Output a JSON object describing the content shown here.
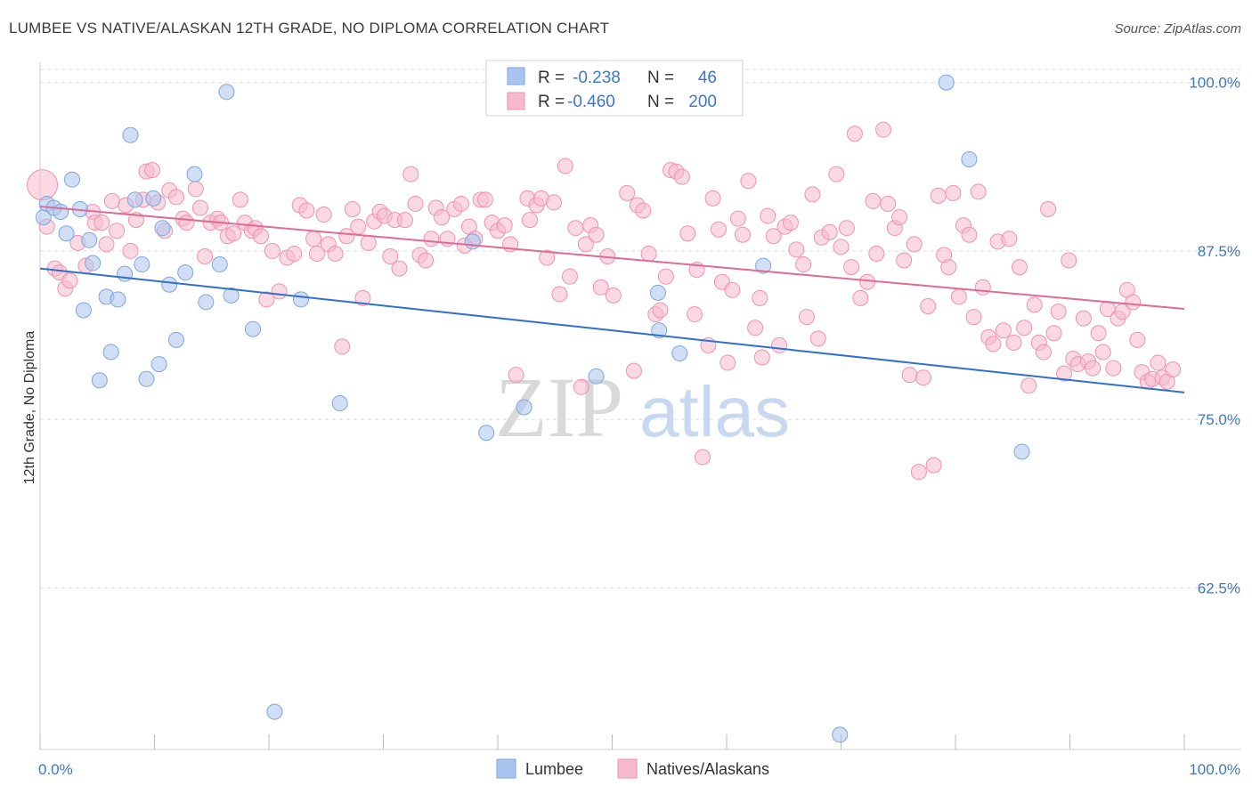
{
  "header": {
    "title": "LUMBEE VS NATIVE/ALASKAN 12TH GRADE, NO DIPLOMA CORRELATION CHART",
    "source": "Source: ZipAtlas.com"
  },
  "watermark": {
    "zip": "ZIP",
    "atlas": "atlas"
  },
  "legend": {
    "r_label": "R =",
    "n_label": "N =",
    "rows": [
      {
        "r": "-0.238",
        "n": "46"
      },
      {
        "r": "-0.460",
        "n": "200"
      }
    ]
  },
  "colors": {
    "lumbee_fill": "#a9c4ef",
    "lumbee_stroke": "#7ea6e0",
    "lumbee_line": "#2f6fd0",
    "native_fill": "#f7b9cc",
    "native_stroke": "#ee93ae",
    "native_line": "#e06a94",
    "tick_text": "#3d77c9",
    "grid": "#dddddd"
  },
  "chart_data": {
    "type": "scatter",
    "title": "LUMBEE VS NATIVE/ALASKAN 12TH GRADE, NO DIPLOMA CORRELATION CHART",
    "xlabel": "",
    "ylabel": "12th Grade, No Diploma",
    "xlim": [
      0,
      100
    ],
    "ylim": [
      50.5,
      101.5
    ],
    "x_tick_labels": [
      "0.0%",
      "100.0%"
    ],
    "y_ticks": [
      62.5,
      75.0,
      87.5,
      100.0
    ],
    "y_tick_labels": [
      "62.5%",
      "75.0%",
      "87.5%",
      "100.0%"
    ],
    "grid": true,
    "legend_position": "top-center",
    "series": [
      {
        "name": "Lumbee",
        "trend": {
          "x": [
            0,
            100
          ],
          "y": [
            86.2,
            77.0
          ]
        },
        "points": [
          [
            0.3,
            90.0
          ],
          [
            0.6,
            91.0
          ],
          [
            1.2,
            90.7
          ],
          [
            1.8,
            90.4
          ],
          [
            2.3,
            88.8
          ],
          [
            2.8,
            92.8
          ],
          [
            3.5,
            90.6
          ],
          [
            3.8,
            83.1
          ],
          [
            4.3,
            88.3
          ],
          [
            4.6,
            86.6
          ],
          [
            5.2,
            77.9
          ],
          [
            5.8,
            84.1
          ],
          [
            6.2,
            80.0
          ],
          [
            6.8,
            83.9
          ],
          [
            7.4,
            85.8
          ],
          [
            7.9,
            96.1
          ],
          [
            8.3,
            91.3
          ],
          [
            8.9,
            86.5
          ],
          [
            9.3,
            78.0
          ],
          [
            9.9,
            91.4
          ],
          [
            10.4,
            79.1
          ],
          [
            10.7,
            89.2
          ],
          [
            11.3,
            85.0
          ],
          [
            11.9,
            80.9
          ],
          [
            12.7,
            85.9
          ],
          [
            13.5,
            93.2
          ],
          [
            14.5,
            83.7
          ],
          [
            15.7,
            86.5
          ],
          [
            16.3,
            99.3
          ],
          [
            16.7,
            84.2
          ],
          [
            18.6,
            81.7
          ],
          [
            20.5,
            53.3
          ],
          [
            22.8,
            83.9
          ],
          [
            26.2,
            76.2
          ],
          [
            37.8,
            88.2
          ],
          [
            39.0,
            74.0
          ],
          [
            42.3,
            75.9
          ],
          [
            48.6,
            78.2
          ],
          [
            54.0,
            84.4
          ],
          [
            54.1,
            81.6
          ],
          [
            55.9,
            79.9
          ],
          [
            63.2,
            86.4
          ],
          [
            69.9,
            51.6
          ],
          [
            79.2,
            100.0
          ],
          [
            81.2,
            94.3
          ],
          [
            85.8,
            72.6
          ]
        ]
      },
      {
        "name": "Natives/Alaskans",
        "trend": {
          "x": [
            0,
            100
          ],
          "y": [
            90.8,
            83.2
          ]
        },
        "points": [
          [
            0.2,
            92.4
          ],
          [
            0.6,
            89.3
          ],
          [
            1.3,
            86.2
          ],
          [
            1.7,
            85.9
          ],
          [
            2.2,
            84.7
          ],
          [
            2.6,
            85.3
          ],
          [
            3.3,
            88.1
          ],
          [
            4.0,
            86.4
          ],
          [
            4.6,
            90.4
          ],
          [
            4.8,
            89.6
          ],
          [
            5.4,
            89.6
          ],
          [
            5.8,
            88.0
          ],
          [
            6.3,
            91.2
          ],
          [
            6.7,
            89.0
          ],
          [
            7.5,
            90.9
          ],
          [
            7.9,
            87.5
          ],
          [
            8.4,
            89.8
          ],
          [
            9.0,
            91.3
          ],
          [
            9.3,
            93.4
          ],
          [
            9.8,
            93.5
          ],
          [
            10.3,
            91.1
          ],
          [
            10.9,
            89.0
          ],
          [
            11.3,
            92.0
          ],
          [
            11.9,
            91.5
          ],
          [
            12.5,
            89.9
          ],
          [
            12.8,
            89.6
          ],
          [
            13.6,
            92.1
          ],
          [
            14.0,
            90.7
          ],
          [
            14.4,
            87.1
          ],
          [
            14.9,
            89.6
          ],
          [
            15.5,
            89.9
          ],
          [
            15.8,
            89.6
          ],
          [
            16.4,
            88.6
          ],
          [
            16.9,
            88.8
          ],
          [
            17.5,
            91.3
          ],
          [
            17.9,
            89.6
          ],
          [
            18.5,
            89.0
          ],
          [
            18.8,
            89.2
          ],
          [
            19.3,
            88.6
          ],
          [
            19.8,
            83.9
          ],
          [
            20.3,
            87.5
          ],
          [
            20.9,
            84.5
          ],
          [
            21.6,
            87.0
          ],
          [
            22.2,
            87.3
          ],
          [
            22.7,
            90.9
          ],
          [
            23.3,
            90.5
          ],
          [
            23.9,
            88.4
          ],
          [
            24.2,
            87.3
          ],
          [
            24.8,
            90.2
          ],
          [
            25.2,
            88.0
          ],
          [
            25.8,
            87.3
          ],
          [
            26.4,
            80.4
          ],
          [
            26.8,
            88.6
          ],
          [
            27.3,
            90.6
          ],
          [
            27.8,
            89.3
          ],
          [
            28.2,
            84.0
          ],
          [
            28.7,
            88.1
          ],
          [
            29.2,
            89.7
          ],
          [
            29.7,
            90.4
          ],
          [
            30.1,
            90.1
          ],
          [
            30.6,
            87.1
          ],
          [
            31.0,
            89.8
          ],
          [
            31.4,
            86.2
          ],
          [
            31.9,
            89.8
          ],
          [
            32.4,
            93.2
          ],
          [
            32.8,
            91.0
          ],
          [
            33.2,
            87.2
          ],
          [
            33.7,
            86.8
          ],
          [
            34.2,
            88.4
          ],
          [
            34.6,
            90.7
          ],
          [
            35.1,
            90.0
          ],
          [
            35.6,
            88.4
          ],
          [
            36.2,
            90.6
          ],
          [
            36.8,
            91.0
          ],
          [
            37.1,
            87.9
          ],
          [
            37.5,
            89.3
          ],
          [
            38.0,
            88.4
          ],
          [
            38.5,
            91.3
          ],
          [
            38.9,
            91.3
          ],
          [
            39.5,
            89.6
          ],
          [
            40.0,
            89.0
          ],
          [
            40.6,
            89.4
          ],
          [
            41.1,
            88.0
          ],
          [
            41.6,
            78.3
          ],
          [
            42.6,
            91.4
          ],
          [
            42.8,
            89.8
          ],
          [
            43.4,
            90.9
          ],
          [
            43.8,
            91.4
          ],
          [
            44.3,
            87.0
          ],
          [
            44.9,
            91.1
          ],
          [
            45.4,
            84.3
          ],
          [
            45.9,
            93.8
          ],
          [
            46.3,
            85.6
          ],
          [
            46.8,
            89.2
          ],
          [
            47.3,
            77.4
          ],
          [
            47.7,
            88.0
          ],
          [
            48.1,
            89.4
          ],
          [
            48.6,
            88.7
          ],
          [
            49.0,
            84.8
          ],
          [
            49.6,
            87.1
          ],
          [
            50.1,
            84.2
          ],
          [
            51.3,
            91.8
          ],
          [
            51.9,
            78.6
          ],
          [
            52.2,
            90.9
          ],
          [
            52.7,
            90.5
          ],
          [
            53.2,
            87.3
          ],
          [
            53.8,
            82.8
          ],
          [
            54.2,
            83.1
          ],
          [
            54.7,
            85.6
          ],
          [
            55.1,
            93.5
          ],
          [
            55.6,
            93.4
          ],
          [
            56.1,
            93.0
          ],
          [
            56.6,
            88.8
          ],
          [
            57.2,
            82.8
          ],
          [
            57.4,
            86.1
          ],
          [
            57.9,
            72.2
          ],
          [
            58.4,
            80.5
          ],
          [
            58.8,
            91.4
          ],
          [
            59.3,
            89.1
          ],
          [
            59.6,
            85.2
          ],
          [
            60.1,
            79.2
          ],
          [
            60.5,
            84.6
          ],
          [
            61.0,
            89.9
          ],
          [
            61.4,
            88.7
          ],
          [
            61.9,
            92.7
          ],
          [
            62.5,
            81.8
          ],
          [
            62.9,
            84.0
          ],
          [
            63.1,
            79.6
          ],
          [
            63.6,
            90.1
          ],
          [
            64.1,
            88.6
          ],
          [
            64.6,
            80.5
          ],
          [
            65.1,
            89.3
          ],
          [
            65.6,
            89.6
          ],
          [
            66.1,
            87.6
          ],
          [
            66.7,
            86.5
          ],
          [
            67.0,
            82.6
          ],
          [
            67.5,
            91.7
          ],
          [
            68.0,
            81.0
          ],
          [
            68.3,
            88.5
          ],
          [
            69.0,
            88.9
          ],
          [
            69.6,
            93.2
          ],
          [
            70.0,
            87.8
          ],
          [
            70.5,
            89.2
          ],
          [
            70.9,
            86.3
          ],
          [
            71.2,
            96.2
          ],
          [
            71.7,
            84.0
          ],
          [
            72.3,
            85.2
          ],
          [
            72.8,
            91.2
          ],
          [
            73.1,
            87.3
          ],
          [
            73.7,
            96.5
          ],
          [
            74.1,
            91.0
          ],
          [
            74.7,
            89.2
          ],
          [
            75.1,
            90.0
          ],
          [
            75.5,
            86.8
          ],
          [
            76.0,
            78.3
          ],
          [
            76.4,
            88.0
          ],
          [
            76.8,
            71.1
          ],
          [
            77.2,
            78.1
          ],
          [
            77.6,
            83.4
          ],
          [
            78.1,
            71.6
          ],
          [
            78.5,
            91.6
          ],
          [
            79.0,
            87.2
          ],
          [
            79.4,
            86.3
          ],
          [
            79.8,
            91.8
          ],
          [
            80.3,
            84.1
          ],
          [
            80.7,
            89.4
          ],
          [
            81.2,
            88.7
          ],
          [
            81.6,
            82.6
          ],
          [
            82.0,
            91.9
          ],
          [
            82.4,
            84.8
          ],
          [
            82.9,
            81.1
          ],
          [
            83.3,
            80.6
          ],
          [
            83.7,
            88.2
          ],
          [
            84.2,
            81.6
          ],
          [
            84.7,
            88.4
          ],
          [
            85.1,
            80.7
          ],
          [
            85.6,
            86.3
          ],
          [
            86.0,
            81.8
          ],
          [
            86.4,
            77.5
          ],
          [
            86.9,
            83.5
          ],
          [
            87.3,
            80.7
          ],
          [
            87.7,
            80.0
          ],
          [
            88.1,
            90.6
          ],
          [
            88.6,
            81.4
          ],
          [
            89.0,
            83.0
          ],
          [
            89.5,
            78.4
          ],
          [
            89.9,
            86.8
          ],
          [
            90.3,
            79.5
          ],
          [
            90.7,
            79.1
          ],
          [
            91.2,
            82.5
          ],
          [
            91.6,
            79.3
          ],
          [
            92.0,
            78.8
          ],
          [
            92.5,
            81.4
          ],
          [
            92.9,
            80.0
          ],
          [
            93.3,
            83.2
          ],
          [
            93.8,
            78.8
          ],
          [
            94.2,
            82.5
          ],
          [
            94.6,
            83.0
          ],
          [
            95.0,
            84.6
          ],
          [
            95.5,
            83.7
          ],
          [
            95.9,
            80.9
          ],
          [
            96.3,
            78.5
          ],
          [
            96.8,
            77.8
          ],
          [
            97.2,
            78.0
          ],
          [
            97.7,
            79.2
          ],
          [
            98.1,
            78.1
          ],
          [
            98.5,
            77.8
          ],
          [
            99.0,
            78.7
          ]
        ]
      }
    ]
  },
  "bottom_legend": [
    {
      "label": "Lumbee"
    },
    {
      "label": "Natives/Alaskans"
    }
  ]
}
